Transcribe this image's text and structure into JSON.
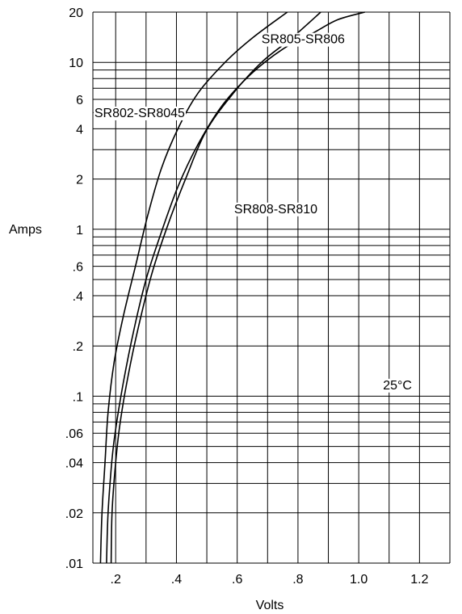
{
  "chart_data": {
    "type": "line",
    "title": "",
    "xlabel": "Volts",
    "ylabel": "Amps",
    "xscale": "linear",
    "yscale": "log",
    "xlim": [
      0.125,
      1.3
    ],
    "ylim": [
      0.01,
      20
    ],
    "grid": true,
    "x_tick_labels": [
      {
        "value": 0.2,
        "label": ".2"
      },
      {
        "value": 0.4,
        "label": ".4"
      },
      {
        "value": 0.6,
        "label": ".6"
      },
      {
        "value": 0.8,
        "label": ".8"
      },
      {
        "value": 1.0,
        "label": "1.0"
      },
      {
        "value": 1.2,
        "label": "1.2"
      }
    ],
    "y_tick_labels": [
      {
        "value": 0.01,
        "label": ".01"
      },
      {
        "value": 0.02,
        "label": ".02"
      },
      {
        "value": 0.04,
        "label": ".04"
      },
      {
        "value": 0.06,
        "label": ".06"
      },
      {
        "value": 0.1,
        "label": ".1"
      },
      {
        "value": 0.2,
        "label": ".2"
      },
      {
        "value": 0.4,
        "label": ".4"
      },
      {
        "value": 0.6,
        "label": ".6"
      },
      {
        "value": 1,
        "label": "1"
      },
      {
        "value": 2,
        "label": "2"
      },
      {
        "value": 4,
        "label": "4"
      },
      {
        "value": 6,
        "label": "6"
      },
      {
        "value": 10,
        "label": "10"
      },
      {
        "value": 20,
        "label": "20"
      }
    ],
    "series": [
      {
        "name": "SR802-SR8045",
        "points": [
          [
            0.15,
            0.01
          ],
          [
            0.155,
            0.02
          ],
          [
            0.165,
            0.04
          ],
          [
            0.175,
            0.08
          ],
          [
            0.195,
            0.16
          ],
          [
            0.225,
            0.3
          ],
          [
            0.265,
            0.6
          ],
          [
            0.305,
            1.2
          ],
          [
            0.35,
            2.3
          ],
          [
            0.405,
            4.0
          ],
          [
            0.47,
            6.5
          ],
          [
            0.56,
            10
          ],
          [
            0.65,
            14
          ],
          [
            0.765,
            20
          ]
        ]
      },
      {
        "name": "SR805-SR806",
        "points": [
          [
            0.185,
            0.01
          ],
          [
            0.188,
            0.02
          ],
          [
            0.2,
            0.04
          ],
          [
            0.215,
            0.07
          ],
          [
            0.24,
            0.13
          ],
          [
            0.275,
            0.26
          ],
          [
            0.32,
            0.55
          ],
          [
            0.375,
            1.1
          ],
          [
            0.43,
            2.0
          ],
          [
            0.495,
            3.8
          ],
          [
            0.58,
            6.3
          ],
          [
            0.68,
            10
          ],
          [
            0.78,
            14
          ],
          [
            0.875,
            20
          ]
        ]
      },
      {
        "name": "SR808-SR810",
        "points": [
          [
            0.17,
            0.01
          ],
          [
            0.175,
            0.02
          ],
          [
            0.187,
            0.04
          ],
          [
            0.198,
            0.06
          ],
          [
            0.225,
            0.12
          ],
          [
            0.26,
            0.25
          ],
          [
            0.3,
            0.5
          ],
          [
            0.345,
            0.9
          ],
          [
            0.405,
            1.8
          ],
          [
            0.47,
            3.2
          ],
          [
            0.55,
            5.5
          ],
          [
            0.645,
            8.5
          ],
          [
            0.75,
            12
          ],
          [
            0.85,
            15
          ],
          [
            0.93,
            18
          ],
          [
            1.02,
            20
          ]
        ]
      }
    ],
    "curve_labels": [
      {
        "text": "SR802-SR8045",
        "x": 0.13,
        "y": 4.7
      },
      {
        "text": "SR805-SR806",
        "x": 0.68,
        "y": 13
      },
      {
        "text": "SR808-SR810",
        "x": 0.59,
        "y": 1.25
      }
    ],
    "annotations": [
      {
        "text": "25°C",
        "x": 1.08,
        "y": 0.11
      }
    ]
  }
}
